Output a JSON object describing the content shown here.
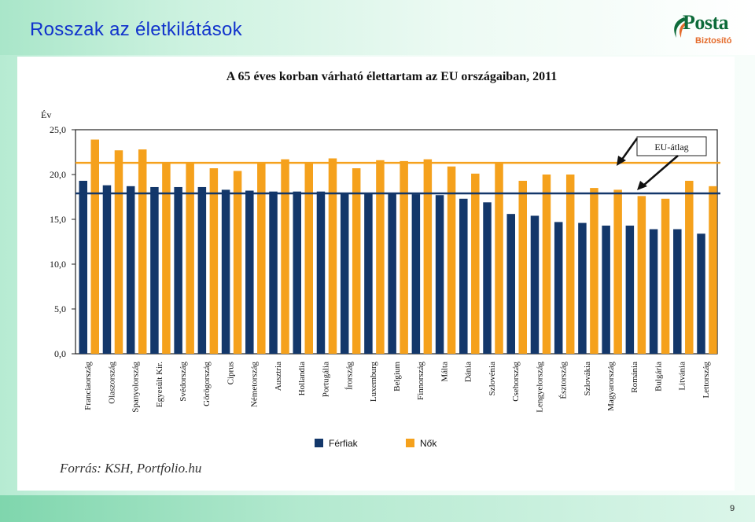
{
  "slide": {
    "title": "Rosszak az életkilátások",
    "page_number": "9",
    "logo": {
      "word": "Posta",
      "sub": "Biztosító"
    }
  },
  "colors": {
    "men": "#13376a",
    "women": "#f5a11c",
    "eu_line_men": "#13376a",
    "eu_line_women": "#f5a11c",
    "title_text": "#1133cc"
  },
  "chart_data": {
    "type": "bar",
    "title": "A 65 éves korban várható élettartam az EU országaiban, 2011",
    "ylabel": "Év",
    "xlabel": "",
    "ylim": [
      0,
      25
    ],
    "yticks": [
      "0,0",
      "5,0",
      "10,0",
      "15,0",
      "20,0",
      "25,0"
    ],
    "grid": false,
    "legend_position": "bottom",
    "categories": [
      "Franciaország",
      "Olaszország",
      "Spanyolország",
      "Egyesült Kir.",
      "Svédország",
      "Görögország",
      "Ciprus",
      "Németország",
      "Ausztria",
      "Hollandia",
      "Portugália",
      "Írország",
      "Luxemburg",
      "Belgium",
      "Finnország",
      "Málta",
      "Dánia",
      "Szlovénia",
      "Csehország",
      "Lengyelország",
      "Észtország",
      "Szlovákia",
      "Magyarország",
      "Románia",
      "Bulgária",
      "Litvánia",
      "Lettország"
    ],
    "series": [
      {
        "name": "Férfiak",
        "values": [
          19.3,
          18.8,
          18.7,
          18.6,
          18.6,
          18.6,
          18.3,
          18.2,
          18.1,
          18.1,
          18.1,
          17.9,
          17.9,
          17.9,
          17.8,
          17.7,
          17.3,
          16.9,
          15.6,
          15.4,
          14.7,
          14.6,
          14.3,
          14.3,
          13.9,
          13.9,
          13.4
        ]
      },
      {
        "name": "Nők",
        "values": [
          23.9,
          22.7,
          22.8,
          21.3,
          21.3,
          20.7,
          20.4,
          21.3,
          21.7,
          21.3,
          21.8,
          20.7,
          21.6,
          21.5,
          21.7,
          20.9,
          20.1,
          21.3,
          19.3,
          20.0,
          20.0,
          18.5,
          18.3,
          17.6,
          17.3,
          19.3,
          18.7
        ]
      }
    ],
    "reference_lines": [
      {
        "series": "Nők",
        "value": 21.3
      },
      {
        "series": "Férfiak",
        "value": 17.9
      }
    ],
    "annotation": "EU-átlag",
    "source": "Forrás: KSH, Portfolio.hu"
  }
}
